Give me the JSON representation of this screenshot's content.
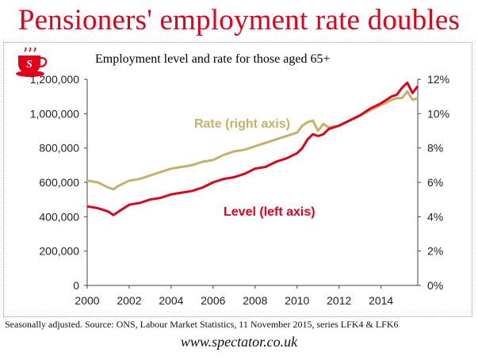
{
  "headline": "Pensioners' employment rate doubles",
  "subtitle": "Employment level and rate for those aged 65+",
  "logo_letter": "S",
  "source": "Seasonally adjusted. Source: ONS, Labour Market Statistics, 11 November 2015, series LFK4 & LFK6",
  "website": "www.spectator.co.uk",
  "colors": {
    "rate": "#c8b067",
    "level": "#e3001b",
    "headline": "#e3001b",
    "axis": "#333333"
  },
  "chart_data": {
    "type": "line",
    "title": "Employment level and rate for those aged 65+",
    "xlabel": "",
    "ylabel": "",
    "x_range": [
      2000,
      2015.75
    ],
    "x_ticks": [
      "2000",
      "2002",
      "2004",
      "2006",
      "2008",
      "2010",
      "2012",
      "2014"
    ],
    "y_left": {
      "range": [
        0,
        1200000
      ],
      "ticks": [
        "0",
        "200,000",
        "400,000",
        "600,000",
        "800,000",
        "1,000,000",
        "1,200,000"
      ],
      "tick_values": [
        0,
        200000,
        400000,
        600000,
        800000,
        1000000,
        1200000
      ]
    },
    "y_right": {
      "range": [
        0,
        12
      ],
      "ticks": [
        "0%",
        "2%",
        "4%",
        "6%",
        "8%",
        "10%",
        "12%"
      ],
      "tick_values": [
        0,
        2,
        4,
        6,
        8,
        10,
        12
      ]
    },
    "series": [
      {
        "name": "Rate",
        "label": "Rate (right axis)",
        "axis": "right",
        "x": [
          2000.0,
          2000.5,
          2001.0,
          2001.25,
          2001.5,
          2002.0,
          2002.5,
          2003.0,
          2003.5,
          2004.0,
          2004.5,
          2005.0,
          2005.5,
          2006.0,
          2006.5,
          2007.0,
          2007.5,
          2008.0,
          2008.5,
          2009.0,
          2009.5,
          2010.0,
          2010.25,
          2010.5,
          2010.75,
          2011.0,
          2011.25,
          2011.5,
          2012.0,
          2012.5,
          2013.0,
          2013.5,
          2014.0,
          2014.5,
          2014.75,
          2015.0,
          2015.25,
          2015.5,
          2015.75
        ],
        "values": [
          6.1,
          6.0,
          5.7,
          5.6,
          5.8,
          6.1,
          6.2,
          6.4,
          6.6,
          6.8,
          6.9,
          7.0,
          7.2,
          7.3,
          7.6,
          7.8,
          7.9,
          8.1,
          8.3,
          8.5,
          8.7,
          8.9,
          9.3,
          9.5,
          9.6,
          9.0,
          9.4,
          9.2,
          9.3,
          9.6,
          9.9,
          10.2,
          10.5,
          10.8,
          10.9,
          10.9,
          11.3,
          10.8,
          10.9
        ]
      },
      {
        "name": "Level",
        "label": "Level (left axis)",
        "axis": "left",
        "x": [
          2000.0,
          2000.5,
          2001.0,
          2001.25,
          2001.5,
          2002.0,
          2002.5,
          2003.0,
          2003.5,
          2004.0,
          2004.5,
          2005.0,
          2005.5,
          2006.0,
          2006.5,
          2007.0,
          2007.5,
          2008.0,
          2008.5,
          2009.0,
          2009.5,
          2010.0,
          2010.25,
          2010.5,
          2010.75,
          2011.0,
          2011.25,
          2011.5,
          2012.0,
          2012.5,
          2013.0,
          2013.5,
          2014.0,
          2014.5,
          2014.75,
          2015.0,
          2015.25,
          2015.5,
          2015.75
        ],
        "values": [
          460000,
          450000,
          430000,
          410000,
          430000,
          470000,
          480000,
          500000,
          510000,
          530000,
          540000,
          550000,
          570000,
          600000,
          620000,
          630000,
          650000,
          680000,
          690000,
          720000,
          740000,
          770000,
          800000,
          850000,
          880000,
          870000,
          880000,
          910000,
          930000,
          960000,
          990000,
          1030000,
          1060000,
          1100000,
          1110000,
          1150000,
          1180000,
          1120000,
          1160000
        ]
      }
    ]
  }
}
